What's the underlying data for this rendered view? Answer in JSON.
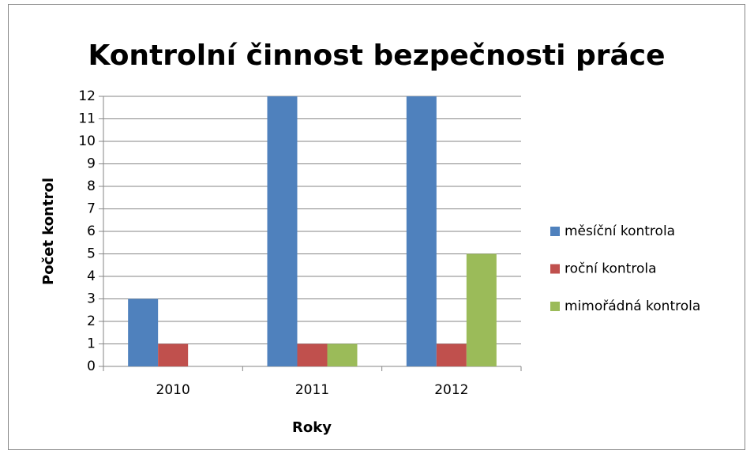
{
  "chart_data": {
    "type": "bar",
    "title": "Kontrolní činnost bezpečnosti práce",
    "x_label": "Roky",
    "y_label": "Počet kontrol",
    "categories": [
      "2010",
      "2011",
      "2012"
    ],
    "series": [
      {
        "name": "měsíční kontrola",
        "color": "#4f81bd",
        "values": [
          3,
          12,
          12
        ]
      },
      {
        "name": "roční kontrola",
        "color": "#c0504d",
        "values": [
          1,
          1,
          1
        ]
      },
      {
        "name": "mimořádná kontrola",
        "color": "#9bbb59",
        "values": [
          0,
          1,
          5
        ]
      }
    ],
    "ylim": [
      0,
      12
    ],
    "yticks": [
      0,
      1,
      2,
      3,
      4,
      5,
      6,
      7,
      8,
      9,
      10,
      11,
      12
    ],
    "grid": true,
    "legend": "right"
  }
}
